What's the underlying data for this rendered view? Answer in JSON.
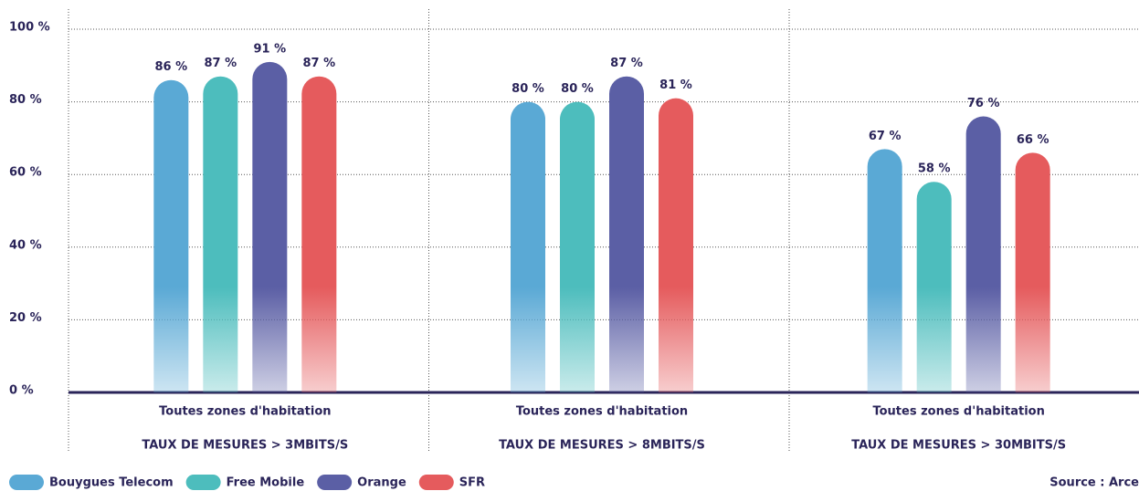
{
  "chart_data": {
    "type": "bar",
    "categories": [
      "Toutes zones d'habitation",
      "Toutes zones d'habitation",
      "Toutes zones d'habitation"
    ],
    "category_subtitles": [
      "TAUX DE MESURES > 3MBITS/S",
      "TAUX DE MESURES > 8MBITS/S",
      "TAUX DE MESURES > 30MBITS/S"
    ],
    "series": [
      {
        "name": "Bouygues Telecom",
        "color": "#5aa9d5",
        "values": [
          86,
          80,
          67
        ],
        "value_labels": [
          "86 %",
          "80 %",
          "67 %"
        ]
      },
      {
        "name": "Free Mobile",
        "color": "#4dbdbd",
        "values": [
          87,
          80,
          58
        ],
        "value_labels": [
          "87 %",
          "80 %",
          "58 %"
        ]
      },
      {
        "name": "Orange",
        "color": "#5b5fa5",
        "values": [
          91,
          87,
          76
        ],
        "value_labels": [
          "91 %",
          "87 %",
          "76 %"
        ]
      },
      {
        "name": "SFR",
        "color": "#e55b5d",
        "values": [
          87,
          81,
          66
        ],
        "value_labels": [
          "87 %",
          "81 %",
          "66 %"
        ]
      }
    ],
    "ylim": [
      0,
      100
    ],
    "yticks": [
      {
        "value": 0,
        "label": "0 %"
      },
      {
        "value": 20,
        "label": "20 %"
      },
      {
        "value": 40,
        "label": "40 %"
      },
      {
        "value": 60,
        "label": "60 %"
      },
      {
        "value": 80,
        "label": "80 %"
      },
      {
        "value": 100,
        "label": "100 %"
      }
    ],
    "grid": true,
    "legend": "bottom-left",
    "source": "Source : Arce"
  }
}
